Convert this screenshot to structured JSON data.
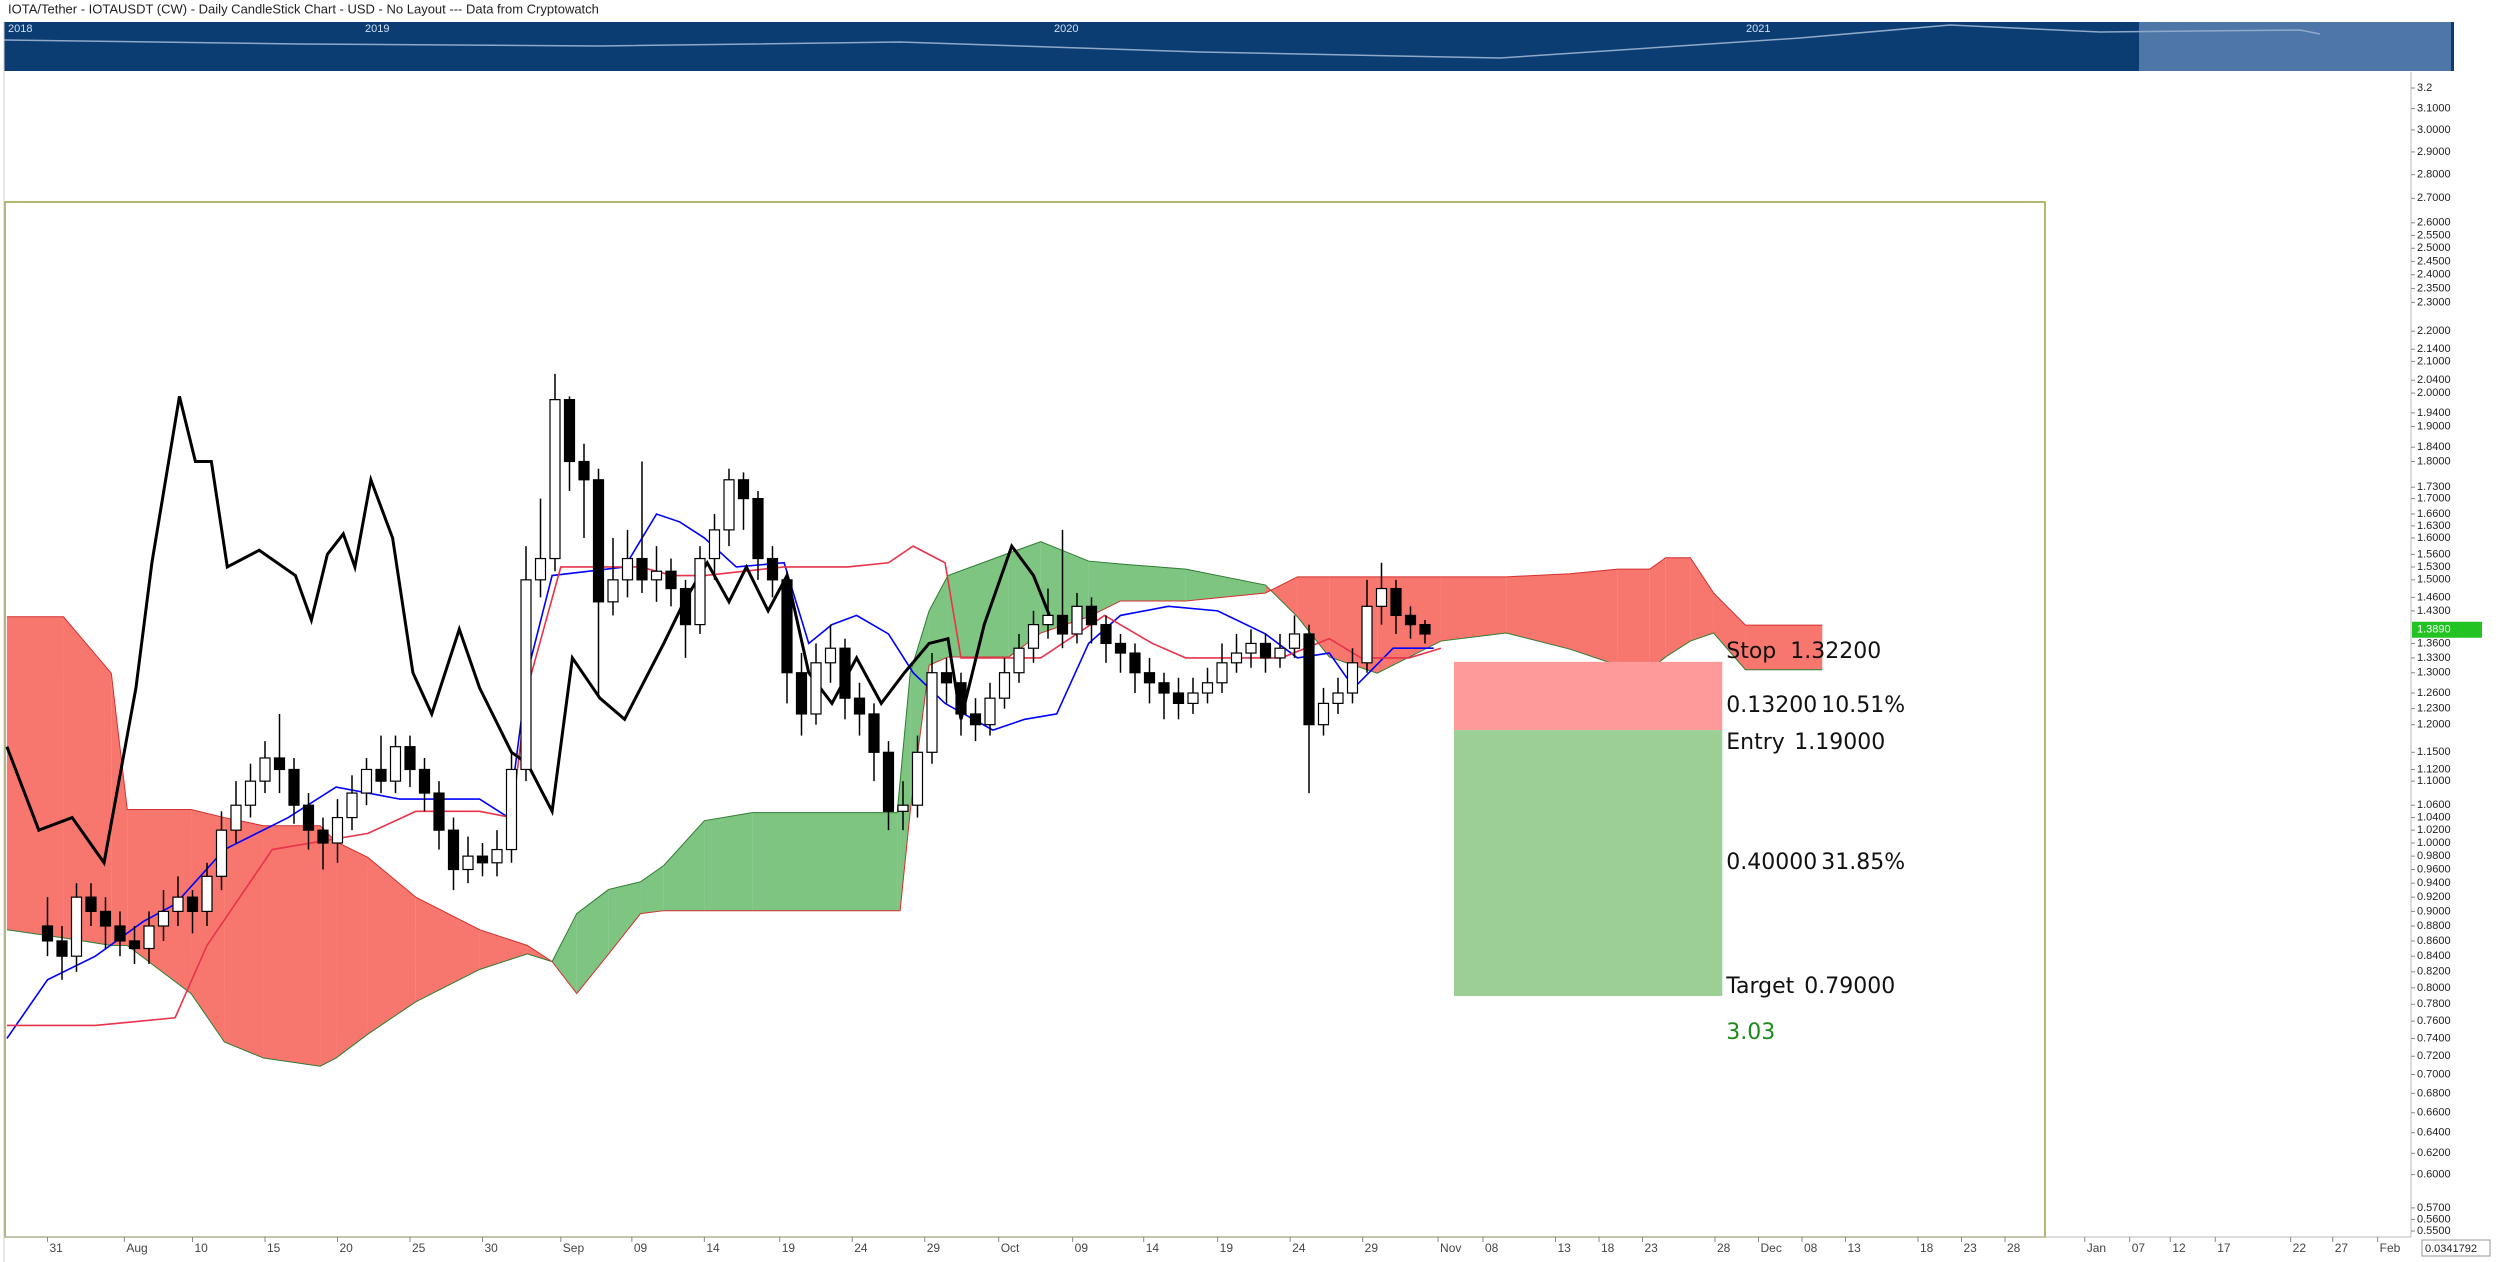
{
  "chart_data": {
    "type": "candlestick",
    "title": "IOTA/Tether - IOTAUSDT (CW) - Daily CandleStick Chart - USD - No Layout --- Data from Cryptowatch",
    "navigator_years": [
      "2018",
      "2019",
      "2020",
      "2021"
    ],
    "scale_value": "0.0341792",
    "log_scale": true,
    "ylim": [
      0.545,
      3.28
    ],
    "xlim": [
      -3,
      163
    ],
    "up_color": "#ffffff",
    "down_color": "#000000",
    "yticks": [
      {
        "value": 3.2,
        "label": "3.2"
      },
      {
        "value": 3.1,
        "label": "3.1000"
      },
      {
        "value": 3.0,
        "label": "3.0000"
      },
      {
        "value": 2.9,
        "label": "2.9000"
      },
      {
        "value": 2.8,
        "label": "2.8000"
      },
      {
        "value": 2.7,
        "label": "2.7000"
      },
      {
        "value": 2.6,
        "label": "2.6000"
      },
      {
        "value": 2.55,
        "label": "2.5500"
      },
      {
        "value": 2.5,
        "label": "2.5000"
      },
      {
        "value": 2.45,
        "label": "2.4500"
      },
      {
        "value": 2.4,
        "label": "2.4000"
      },
      {
        "value": 2.35,
        "label": "2.3500"
      },
      {
        "value": 2.3,
        "label": "2.3000"
      },
      {
        "value": 2.2,
        "label": "2.2000"
      },
      {
        "value": 2.14,
        "label": "2.1400"
      },
      {
        "value": 2.1,
        "label": "2.1000"
      },
      {
        "value": 2.04,
        "label": "2.0400"
      },
      {
        "value": 2.0,
        "label": "2.0000"
      },
      {
        "value": 1.94,
        "label": "1.9400"
      },
      {
        "value": 1.9,
        "label": "1.9000"
      },
      {
        "value": 1.84,
        "label": "1.8400"
      },
      {
        "value": 1.8,
        "label": "1.8000"
      },
      {
        "value": 1.73,
        "label": "1.7300"
      },
      {
        "value": 1.7,
        "label": "1.7000"
      },
      {
        "value": 1.66,
        "label": "1.6600"
      },
      {
        "value": 1.63,
        "label": "1.6300"
      },
      {
        "value": 1.6,
        "label": "1.6000"
      },
      {
        "value": 1.56,
        "label": "1.5600"
      },
      {
        "value": 1.53,
        "label": "1.5300"
      },
      {
        "value": 1.5,
        "label": "1.5000"
      },
      {
        "value": 1.46,
        "label": "1.4600"
      },
      {
        "value": 1.43,
        "label": "1.4300"
      },
      {
        "value": 1.36,
        "label": "1.3600"
      },
      {
        "value": 1.33,
        "label": "1.3300"
      },
      {
        "value": 1.3,
        "label": "1.3000"
      },
      {
        "value": 1.26,
        "label": "1.2600"
      },
      {
        "value": 1.23,
        "label": "1.2300"
      },
      {
        "value": 1.2,
        "label": "1.2000"
      },
      {
        "value": 1.15,
        "label": "1.1500"
      },
      {
        "value": 1.12,
        "label": "1.1200"
      },
      {
        "value": 1.1,
        "label": "1.1000"
      },
      {
        "value": 1.06,
        "label": "1.0600"
      },
      {
        "value": 1.04,
        "label": "1.0400"
      },
      {
        "value": 1.02,
        "label": "1.0200"
      },
      {
        "value": 1.0,
        "label": "1.0000"
      },
      {
        "value": 0.98,
        "label": "0.9800"
      },
      {
        "value": 0.96,
        "label": "0.9600"
      },
      {
        "value": 0.94,
        "label": "0.9400"
      },
      {
        "value": 0.92,
        "label": "0.9200"
      },
      {
        "value": 0.9,
        "label": "0.9000"
      },
      {
        "value": 0.88,
        "label": "0.8800"
      },
      {
        "value": 0.86,
        "label": "0.8600"
      },
      {
        "value": 0.84,
        "label": "0.8400"
      },
      {
        "value": 0.82,
        "label": "0.8200"
      },
      {
        "value": 0.8,
        "label": "0.8000"
      },
      {
        "value": 0.78,
        "label": "0.7800"
      },
      {
        "value": 0.76,
        "label": "0.7600"
      },
      {
        "value": 0.74,
        "label": "0.7400"
      },
      {
        "value": 0.72,
        "label": "0.7200"
      },
      {
        "value": 0.7,
        "label": "0.7000"
      },
      {
        "value": 0.68,
        "label": "0.6800"
      },
      {
        "value": 0.66,
        "label": "0.6600"
      },
      {
        "value": 0.64,
        "label": "0.6400"
      },
      {
        "value": 0.62,
        "label": "0.6200"
      },
      {
        "value": 0.6,
        "label": "0.6000"
      },
      {
        "value": 0.57,
        "label": "0.5700"
      },
      {
        "value": 0.56,
        "label": "0.5600"
      },
      {
        "value": 0.55,
        "label": "0.5500"
      }
    ],
    "xticks": [
      {
        "value": 0,
        "label": "31"
      },
      {
        "value": 5.3,
        "label": "Aug"
      },
      {
        "value": 10,
        "label": "10"
      },
      {
        "value": 15,
        "label": "15"
      },
      {
        "value": 20,
        "label": "20"
      },
      {
        "value": 25,
        "label": "25"
      },
      {
        "value": 30,
        "label": "30"
      },
      {
        "value": 35.4,
        "label": "Sep"
      },
      {
        "value": 40.3,
        "label": "09"
      },
      {
        "value": 45.3,
        "label": "14"
      },
      {
        "value": 50.5,
        "label": "19"
      },
      {
        "value": 55.5,
        "label": "24"
      },
      {
        "value": 60.5,
        "label": "29"
      },
      {
        "value": 65.6,
        "label": "Oct"
      },
      {
        "value": 70.7,
        "label": "09"
      },
      {
        "value": 75.6,
        "label": "14"
      },
      {
        "value": 80.7,
        "label": "19"
      },
      {
        "value": 85.7,
        "label": "24"
      },
      {
        "value": 90.7,
        "label": "29"
      },
      {
        "value": 95.9,
        "label": "Nov"
      },
      {
        "value": 99,
        "label": "08"
      },
      {
        "value": 104,
        "label": "13"
      },
      {
        "value": 107,
        "label": "18"
      },
      {
        "value": 110,
        "label": "23"
      },
      {
        "value": 115,
        "label": "28"
      },
      {
        "value": 118,
        "label": "Dec"
      },
      {
        "value": 121,
        "label": "08"
      },
      {
        "value": 124,
        "label": "13"
      },
      {
        "value": 129,
        "label": "18"
      },
      {
        "value": 132,
        "label": "23"
      },
      {
        "value": 135,
        "label": "28"
      },
      {
        "value": 140.5,
        "label": "Jan"
      },
      {
        "value": 143.6,
        "label": "07"
      },
      {
        "value": 146.4,
        "label": "12"
      },
      {
        "value": 149.5,
        "label": "17"
      },
      {
        "value": 154.7,
        "label": "22"
      },
      {
        "value": 157.6,
        "label": "27"
      },
      {
        "value": 160.7,
        "label": "Feb"
      }
    ],
    "open": [
      0.88,
      0.86,
      0.84,
      0.92,
      0.9,
      0.88,
      0.86,
      0.85,
      0.88,
      0.9,
      0.92,
      0.9,
      0.95,
      1.02,
      1.06,
      1.1,
      1.14,
      1.12,
      1.06,
      1.02,
      1.0,
      1.04,
      1.08,
      1.12,
      1.1,
      1.16,
      1.12,
      1.08,
      1.02,
      0.96,
      0.98,
      0.97,
      0.99,
      1.12,
      1.5,
      1.55,
      1.98,
      1.8,
      1.75,
      1.45,
      1.5,
      1.55,
      1.5,
      1.52,
      1.48,
      1.4,
      1.55,
      1.62,
      1.75,
      1.7,
      1.55,
      1.5,
      1.3,
      1.22,
      1.32,
      1.35,
      1.25,
      1.22,
      1.15,
      1.05,
      1.06,
      1.15,
      1.3,
      1.28,
      1.22,
      1.2,
      1.25,
      1.3,
      1.35,
      1.4,
      1.42,
      1.38,
      1.44,
      1.4,
      1.36,
      1.34,
      1.3,
      1.28,
      1.26,
      1.24,
      1.26,
      1.28,
      1.32,
      1.34,
      1.36,
      1.33,
      1.35,
      1.38,
      1.2,
      1.24,
      1.26,
      1.32,
      1.44,
      1.48,
      1.42,
      1.4
    ],
    "high": [
      0.92,
      0.88,
      0.94,
      0.94,
      0.92,
      0.9,
      0.88,
      0.9,
      0.93,
      0.95,
      0.93,
      0.97,
      1.05,
      1.1,
      1.13,
      1.17,
      1.22,
      1.14,
      1.08,
      1.04,
      1.07,
      1.11,
      1.14,
      1.18,
      1.18,
      1.18,
      1.14,
      1.1,
      1.04,
      1.01,
      1.0,
      1.02,
      1.15,
      1.58,
      1.7,
      2.06,
      1.99,
      1.85,
      1.78,
      1.6,
      1.62,
      1.8,
      1.58,
      1.55,
      1.5,
      1.58,
      1.66,
      1.78,
      1.77,
      1.72,
      1.58,
      1.52,
      1.34,
      1.36,
      1.4,
      1.37,
      1.28,
      1.24,
      1.17,
      1.1,
      1.18,
      1.34,
      1.33,
      1.3,
      1.25,
      1.28,
      1.33,
      1.38,
      1.43,
      1.48,
      1.62,
      1.47,
      1.46,
      1.42,
      1.38,
      1.36,
      1.33,
      1.3,
      1.29,
      1.29,
      1.31,
      1.36,
      1.38,
      1.39,
      1.38,
      1.38,
      1.42,
      1.4,
      1.27,
      1.29,
      1.35,
      1.5,
      1.54,
      1.5,
      1.44,
      1.41
    ],
    "low": [
      0.84,
      0.81,
      0.82,
      0.88,
      0.85,
      0.84,
      0.83,
      0.83,
      0.86,
      0.88,
      0.87,
      0.88,
      0.93,
      1.0,
      1.04,
      1.08,
      1.08,
      1.03,
      0.99,
      0.96,
      0.97,
      1.02,
      1.06,
      1.08,
      1.08,
      1.09,
      1.05,
      0.99,
      0.93,
      0.94,
      0.95,
      0.95,
      0.97,
      1.1,
      1.46,
      1.52,
      1.72,
      1.6,
      1.25,
      1.42,
      1.46,
      1.47,
      1.45,
      1.44,
      1.33,
      1.38,
      1.5,
      1.58,
      1.62,
      1.5,
      1.46,
      1.24,
      1.18,
      1.2,
      1.28,
      1.21,
      1.18,
      1.1,
      1.02,
      1.02,
      1.04,
      1.13,
      1.24,
      1.18,
      1.17,
      1.18,
      1.23,
      1.28,
      1.32,
      1.37,
      1.35,
      1.36,
      1.36,
      1.32,
      1.3,
      1.26,
      1.24,
      1.21,
      1.21,
      1.22,
      1.24,
      1.26,
      1.3,
      1.31,
      1.3,
      1.31,
      1.33,
      1.08,
      1.18,
      1.22,
      1.24,
      1.3,
      1.4,
      1.38,
      1.37,
      1.36
    ],
    "close": [
      0.86,
      0.84,
      0.92,
      0.9,
      0.88,
      0.86,
      0.85,
      0.88,
      0.9,
      0.92,
      0.9,
      0.95,
      1.02,
      1.06,
      1.1,
      1.14,
      1.12,
      1.06,
      1.02,
      1.0,
      1.04,
      1.08,
      1.12,
      1.1,
      1.16,
      1.12,
      1.08,
      1.02,
      0.96,
      0.98,
      0.97,
      0.99,
      1.12,
      1.5,
      1.55,
      1.98,
      1.8,
      1.75,
      1.45,
      1.5,
      1.55,
      1.5,
      1.52,
      1.48,
      1.4,
      1.55,
      1.62,
      1.75,
      1.7,
      1.55,
      1.5,
      1.3,
      1.22,
      1.32,
      1.35,
      1.25,
      1.22,
      1.15,
      1.05,
      1.06,
      1.15,
      1.3,
      1.28,
      1.22,
      1.2,
      1.25,
      1.3,
      1.35,
      1.4,
      1.42,
      1.38,
      1.44,
      1.4,
      1.36,
      1.34,
      1.3,
      1.28,
      1.26,
      1.24,
      1.26,
      1.28,
      1.32,
      1.34,
      1.36,
      1.33,
      1.35,
      1.38,
      1.2,
      1.24,
      1.26,
      1.32,
      1.44,
      1.48,
      1.42,
      1.4,
      1.38
    ],
    "lines": [
      {
        "color": "#0000ff",
        "x": [
          -2.8,
          0,
          3.3,
          6.6,
          8.8,
          12.2,
          16.6,
          19.9,
          24.3,
          29.8,
          31.8,
          33.1,
          34.8,
          39.8,
          42.0,
          43.6,
          45.3,
          47.5,
          50.8,
          52.5,
          54.1,
          55.8,
          58.0,
          59.7,
          61.9,
          65.2,
          67.4,
          69.6,
          71.8,
          74.0,
          77.3,
          80.7,
          84.0,
          86.2,
          88.4,
          90.1,
          92.8,
          95.6
        ],
        "values": [
          0.74,
          0.81,
          0.84,
          0.886,
          0.91,
          0.99,
          1.04,
          1.09,
          1.07,
          1.07,
          1.04,
          1.3,
          1.51,
          1.53,
          1.66,
          1.64,
          1.6,
          1.53,
          1.54,
          1.36,
          1.4,
          1.42,
          1.38,
          1.3,
          1.24,
          1.19,
          1.21,
          1.22,
          1.36,
          1.42,
          1.44,
          1.43,
          1.38,
          1.33,
          1.34,
          1.27,
          1.35,
          1.35
        ]
      },
      {
        "color": "#e8334a",
        "x": [
          -2.8,
          3.3,
          8.8,
          11.0,
          15.5,
          22.1,
          25.4,
          29.8,
          32.0,
          33.1,
          35.4,
          40.9,
          43.1,
          45.3,
          50.8,
          55.2,
          58.0,
          59.7,
          61.9,
          63.0,
          68.5,
          72.9,
          76.2,
          78.5,
          85.1,
          88.4,
          90.6,
          93.9,
          96.1
        ],
        "values": [
          0.755,
          0.755,
          0.764,
          0.854,
          0.99,
          1.015,
          1.05,
          1.05,
          1.04,
          1.27,
          1.53,
          1.53,
          1.51,
          1.51,
          1.53,
          1.53,
          1.54,
          1.58,
          1.54,
          1.33,
          1.33,
          1.42,
          1.36,
          1.33,
          1.33,
          1.37,
          1.33,
          1.33,
          1.35
        ]
      },
      {
        "color": "#000000",
        "x": [
          -2.8,
          -0.6,
          1.7,
          3.9,
          6.1,
          7.2,
          9.1,
          10.2,
          11.3,
          12.4,
          14.6,
          17.1,
          18.2,
          19.3,
          20.4,
          21.2,
          22.3,
          23.8,
          25.2,
          26.5,
          28.4,
          29.8,
          32.0,
          33.1,
          34.8,
          36.2,
          38.1,
          39.8,
          42.5,
          43.9,
          45.5,
          47.0,
          48.2,
          49.7,
          51.0,
          52.5,
          54.1,
          55.8,
          57.5,
          59.1,
          60.8,
          62.1,
          63.0,
          64.6,
          66.5,
          68.0,
          69.1
        ],
        "values": [
          1.16,
          1.02,
          1.04,
          0.97,
          1.27,
          1.54,
          1.99,
          1.8,
          1.8,
          1.53,
          1.57,
          1.51,
          1.41,
          1.56,
          1.61,
          1.53,
          1.75,
          1.6,
          1.3,
          1.22,
          1.39,
          1.27,
          1.15,
          1.13,
          1.05,
          1.33,
          1.25,
          1.21,
          1.36,
          1.45,
          1.54,
          1.45,
          1.53,
          1.43,
          1.51,
          1.3,
          1.24,
          1.33,
          1.24,
          1.3,
          1.36,
          1.37,
          1.21,
          1.4,
          1.58,
          1.51,
          1.42
        ]
      }
    ],
    "cloud": {
      "up_color": "#4caf50",
      "down_color": "#f44336",
      "x": [
        -2.8,
        1.1,
        4.4,
        5.5,
        9.9,
        12.2,
        14.9,
        18.8,
        19.9,
        22.1,
        25.4,
        29.8,
        33.1,
        34.8,
        36.5,
        38.7,
        40.9,
        42.5,
        45.3,
        48.6,
        58.6,
        58.8,
        59.5,
        60.8,
        62.1,
        66.3,
        68.5,
        71.8,
        74.0,
        78.5,
        84.0,
        86.2,
        88.4,
        91.7,
        96.1,
        100.6,
        105.0,
        108.3,
        110.5,
        111.6,
        113.3,
        114.9,
        117.1,
        122.4
      ],
      "span_a": [
        0.875,
        0.864,
        0.854,
        0.854,
        0.793,
        0.736,
        0.718,
        0.709,
        0.718,
        0.745,
        0.783,
        0.823,
        0.843,
        0.833,
        0.897,
        0.931,
        0.942,
        0.966,
        1.035,
        1.048,
        1.048,
        1.1,
        1.3,
        1.43,
        1.51,
        1.563,
        1.591,
        1.544,
        1.537,
        1.525,
        1.488,
        1.417,
        1.332,
        1.299,
        1.365,
        1.382,
        1.348,
        1.315,
        1.306,
        1.332,
        1.365,
        1.382,
        1.306,
        1.306
      ],
      "span_b": [
        1.417,
        1.417,
        1.299,
        1.053,
        1.053,
        1.04,
        1.027,
        1.027,
        1.002,
        0.978,
        0.92,
        0.875,
        0.854,
        0.833,
        0.793,
        0.843,
        0.897,
        0.901,
        0.901,
        0.901,
        0.901,
        0.901,
        1.05,
        1.315,
        1.332,
        1.332,
        1.382,
        1.417,
        1.452,
        1.452,
        1.47,
        1.507,
        1.507,
        1.507,
        1.507,
        1.507,
        1.514,
        1.525,
        1.525,
        1.552,
        1.552,
        1.47,
        1.399,
        1.399
      ]
    },
    "last_price": {
      "value": 1.389,
      "label": "1.3890",
      "color": "#22c322"
    },
    "position": {
      "x_start": 97,
      "x_end": 115.5,
      "stop": {
        "text": "Stop",
        "value": 1.322,
        "label": "1.32200"
      },
      "entry": {
        "text": "Entry",
        "value": 1.19,
        "label": "1.19000"
      },
      "target": {
        "text": "Target",
        "value": 0.79,
        "label": "0.79000"
      },
      "risk": {
        "amount": "0.13200",
        "percent": "10.51%",
        "color": "#ff9a9a"
      },
      "reward": {
        "amount": "0.40000",
        "percent": "31.85%",
        "color": "#9ccf96"
      },
      "ratio": "3.03"
    }
  }
}
